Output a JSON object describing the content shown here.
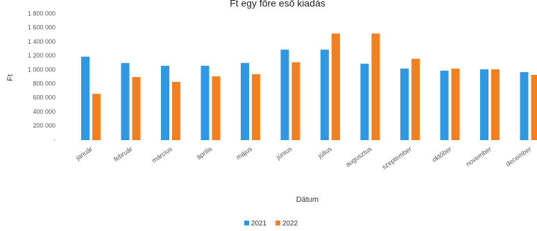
{
  "chart_data": {
    "type": "bar",
    "title": "Ft egy főre eső kiadás",
    "xlabel": "Dátum",
    "ylabel": "Ft",
    "ylim": [
      0,
      1800000
    ],
    "y_ticks": [
      0,
      200000,
      400000,
      600000,
      800000,
      1000000,
      1200000,
      1400000,
      1600000,
      1800000
    ],
    "y_tick_labels": [
      "-",
      "200 000",
      "400 000",
      "600 000",
      "800 000",
      "1 000 000",
      "1 200 000",
      "1 400 000",
      "1 600 000",
      "1 800 000"
    ],
    "categories": [
      "január",
      "február",
      "március",
      "április",
      "május",
      "június",
      "július",
      "augusztus",
      "szeptember",
      "október",
      "november",
      "december"
    ],
    "series": [
      {
        "name": "2021",
        "color": "#2f98e4",
        "values": [
          1190000,
          1100000,
          1060000,
          1060000,
          1100000,
          1290000,
          1290000,
          1090000,
          1020000,
          990000,
          1010000,
          970000
        ]
      },
      {
        "name": "2022",
        "color": "#f47f1f",
        "values": [
          660000,
          900000,
          830000,
          910000,
          940000,
          1110000,
          1520000,
          1520000,
          1160000,
          1020000,
          1010000,
          930000
        ]
      }
    ],
    "grid": false,
    "legend_position": "bottom"
  }
}
